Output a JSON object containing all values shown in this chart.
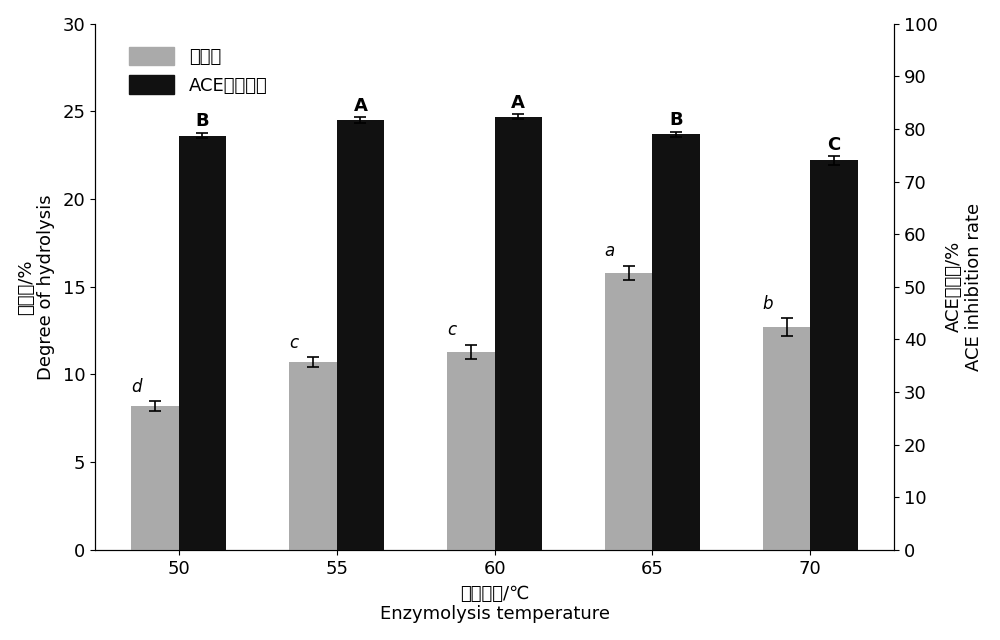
{
  "temperatures": [
    50,
    55,
    60,
    65,
    70
  ],
  "hydrolysis_values": [
    8.2,
    10.7,
    11.3,
    15.8,
    12.7
  ],
  "hydrolysis_errors": [
    0.3,
    0.3,
    0.4,
    0.4,
    0.5
  ],
  "ace_values": [
    78.7,
    81.7,
    82.3,
    79.0,
    74.0
  ],
  "ace_errors": [
    0.5,
    0.5,
    0.5,
    0.5,
    0.8
  ],
  "hydrolysis_labels": [
    "d",
    "c",
    "c",
    "a",
    "b"
  ],
  "ace_labels": [
    "B",
    "A",
    "A",
    "B",
    "C"
  ],
  "bar_width": 0.3,
  "gray_color": "#AAAAAA",
  "black_color": "#111111",
  "left_ylim": [
    0,
    30
  ],
  "right_ylim": [
    0,
    100
  ],
  "left_yticks": [
    0,
    5,
    10,
    15,
    20,
    25,
    30
  ],
  "right_yticks": [
    0,
    10,
    20,
    30,
    40,
    50,
    60,
    70,
    80,
    90,
    100
  ],
  "xlabel_cn": "酶解温度/℃",
  "xlabel_en": "Enzymolysis temperature",
  "ylabel_left_cn": "水解度/%",
  "ylabel_left_en": "Degree of hydrolysis",
  "ylabel_right_cn": "ACE抑制率/%",
  "ylabel_right_en": "ACE inhibition rate",
  "legend_gray": "水解度",
  "legend_black": "ACE抑制活性",
  "figsize": [
    10,
    6.4
  ],
  "dpi": 100
}
